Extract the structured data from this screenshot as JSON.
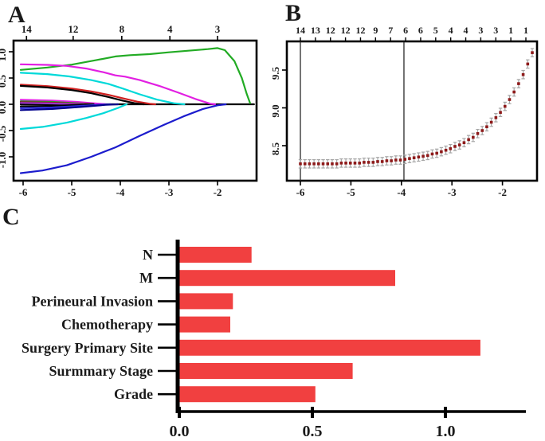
{
  "figure": {
    "panel_labels": {
      "a": "A",
      "b": "B",
      "c": "C"
    }
  },
  "chart_data": [
    {
      "id": "A",
      "type": "line",
      "title": "",
      "xlabel": "",
      "ylabel": "",
      "xlim": [
        -6.2,
        -1.2
      ],
      "ylim": [
        -1.45,
        1.3
      ],
      "grid": false,
      "top_axis": {
        "labels": [
          "14",
          "12",
          "8",
          "4",
          "3"
        ],
        "values": [
          -5.93,
          -4.97,
          -3.97,
          -2.98,
          -2.0
        ]
      },
      "x_ticks": {
        "labels": [
          "-6",
          "-5",
          "-4",
          "-3",
          "-2"
        ],
        "values": [
          -6,
          -5,
          -4,
          -3,
          -2
        ]
      },
      "y_ticks": {
        "labels": [
          "1.0",
          "0.5",
          "0.0",
          "-0.5",
          "-1.0"
        ],
        "values": [
          1.0,
          0.5,
          0.0,
          -0.5,
          -1.0
        ]
      },
      "series": [
        {
          "name": "zero-line",
          "color": "#000000",
          "points": [
            [
              -6.05,
              0
            ],
            [
              -1.25,
              0
            ]
          ]
        },
        {
          "name": "coef-green-main",
          "color": "#22AB24",
          "points": [
            [
              -6.05,
              0.655
            ],
            [
              -5.5,
              0.7
            ],
            [
              -5.0,
              0.755
            ],
            [
              -4.5,
              0.84
            ],
            [
              -4.1,
              0.91
            ],
            [
              -3.8,
              0.935
            ],
            [
              -3.4,
              0.955
            ],
            [
              -3.0,
              0.99
            ],
            [
              -2.6,
              1.02
            ],
            [
              -2.2,
              1.05
            ],
            [
              -2.0,
              1.07
            ],
            [
              -1.85,
              1.03
            ],
            [
              -1.65,
              0.82
            ],
            [
              -1.5,
              0.5
            ],
            [
              -1.4,
              0.2
            ],
            [
              -1.33,
              0.02
            ]
          ]
        },
        {
          "name": "coef-magenta-main",
          "color": "#E21FE2",
          "points": [
            [
              -6.05,
              0.76
            ],
            [
              -5.5,
              0.75
            ],
            [
              -5.1,
              0.73
            ],
            [
              -4.7,
              0.68
            ],
            [
              -4.35,
              0.61
            ],
            [
              -4.1,
              0.55
            ],
            [
              -3.9,
              0.525
            ],
            [
              -3.6,
              0.46
            ],
            [
              -3.2,
              0.35
            ],
            [
              -2.8,
              0.22
            ],
            [
              -2.45,
              0.1
            ],
            [
              -2.15,
              0.01
            ],
            [
              -2.05,
              0
            ]
          ]
        },
        {
          "name": "coef-cyan-main",
          "color": "#00D9D9",
          "points": [
            [
              -6.05,
              0.6
            ],
            [
              -5.5,
              0.575
            ],
            [
              -5.05,
              0.53
            ],
            [
              -4.6,
              0.46
            ],
            [
              -4.25,
              0.39
            ],
            [
              -3.95,
              0.3
            ],
            [
              -3.6,
              0.19
            ],
            [
              -3.25,
              0.09
            ],
            [
              -2.9,
              0.02
            ],
            [
              -2.68,
              0
            ]
          ]
        },
        {
          "name": "coef-red-main",
          "color": "#D02020",
          "points": [
            [
              -6.05,
              0.375
            ],
            [
              -5.5,
              0.345
            ],
            [
              -5.0,
              0.3
            ],
            [
              -4.6,
              0.245
            ],
            [
              -4.25,
              0.18
            ],
            [
              -3.95,
              0.115
            ],
            [
              -3.65,
              0.05
            ],
            [
              -3.4,
              0.01
            ],
            [
              -3.28,
              0
            ]
          ]
        },
        {
          "name": "coef-black-main",
          "color": "#000000",
          "points": [
            [
              -6.05,
              0.35
            ],
            [
              -5.5,
              0.32
            ],
            [
              -5.0,
              0.27
            ],
            [
              -4.6,
              0.21
            ],
            [
              -4.25,
              0.14
            ],
            [
              -3.95,
              0.07
            ],
            [
              -3.7,
              0.02
            ],
            [
              -3.52,
              0
            ]
          ]
        },
        {
          "name": "coef-magenta-small",
          "color": "#E21FE2",
          "points": [
            [
              -6.05,
              0.085
            ],
            [
              -5.4,
              0.07
            ],
            [
              -4.9,
              0.045
            ],
            [
              -4.5,
              0.015
            ],
            [
              -4.3,
              0
            ]
          ]
        },
        {
          "name": "coef-green-small",
          "color": "#22AB24",
          "points": [
            [
              -6.05,
              0.055
            ],
            [
              -5.4,
              0.045
            ],
            [
              -4.9,
              0.02
            ],
            [
              -4.55,
              0
            ]
          ]
        },
        {
          "name": "coef-darkred-small",
          "color": "#8B2020",
          "points": [
            [
              -6.05,
              0.04
            ],
            [
              -5.4,
              0.03
            ],
            [
              -4.9,
              0.012
            ],
            [
              -4.6,
              0
            ]
          ]
        },
        {
          "name": "coef-purple-small",
          "color": "#9A32CD",
          "points": [
            [
              -6.05,
              0.025
            ],
            [
              -5.4,
              0.015
            ],
            [
              -5.0,
              0.005
            ],
            [
              -4.75,
              0
            ]
          ]
        },
        {
          "name": "coef-black-small",
          "color": "#000000",
          "points": [
            [
              -6.05,
              -0.04
            ],
            [
              -5.4,
              -0.03
            ],
            [
              -4.9,
              -0.012
            ],
            [
              -4.55,
              0
            ]
          ]
        },
        {
          "name": "coef-blue-small",
          "color": "#2E2ED6",
          "points": [
            [
              -6.05,
              -0.075
            ],
            [
              -5.4,
              -0.06
            ],
            [
              -4.8,
              -0.03
            ],
            [
              -4.35,
              -0.005
            ],
            [
              -4.2,
              0
            ]
          ]
        },
        {
          "name": "coef-navy-small",
          "color": "#00008B",
          "points": [
            [
              -6.05,
              -0.11
            ],
            [
              -5.4,
              -0.09
            ],
            [
              -4.8,
              -0.05
            ],
            [
              -4.3,
              -0.01
            ],
            [
              -4.05,
              0
            ]
          ]
        },
        {
          "name": "coef-cyan-low",
          "color": "#00D9D9",
          "points": [
            [
              -6.05,
              -0.47
            ],
            [
              -5.6,
              -0.43
            ],
            [
              -5.1,
              -0.35
            ],
            [
              -4.7,
              -0.26
            ],
            [
              -4.35,
              -0.17
            ],
            [
              -4.05,
              -0.07
            ],
            [
              -3.87,
              0
            ]
          ]
        },
        {
          "name": "coef-blue-low",
          "color": "#1C1CCD",
          "points": [
            [
              -6.05,
              -1.31
            ],
            [
              -5.6,
              -1.26
            ],
            [
              -5.1,
              -1.16
            ],
            [
              -4.6,
              -1.0
            ],
            [
              -4.1,
              -0.82
            ],
            [
              -3.6,
              -0.6
            ],
            [
              -3.1,
              -0.39
            ],
            [
              -2.7,
              -0.23
            ],
            [
              -2.3,
              -0.09
            ],
            [
              -2.0,
              -0.02
            ],
            [
              -1.83,
              0
            ]
          ]
        }
      ]
    },
    {
      "id": "B",
      "type": "scatter",
      "title": "",
      "xlabel": "",
      "ylabel": "",
      "xlim": [
        -6.27,
        -1.33
      ],
      "ylim": [
        8.04,
        9.88
      ],
      "grid": false,
      "top_axis": {
        "labels": [
          "14",
          "13",
          "12",
          "12",
          "12",
          "9",
          "7",
          "6",
          "6",
          "5",
          "4",
          "4",
          "3",
          "3",
          "1",
          "1"
        ]
      },
      "x_ticks": {
        "labels": [
          "-6",
          "-5",
          "-4",
          "-3",
          "-2"
        ],
        "values": [
          -6,
          -5,
          -4,
          -3,
          -2
        ]
      },
      "y_ticks": {
        "labels": [
          "9.5",
          "9.0",
          "8.5"
        ],
        "values": [
          9.5,
          9.0,
          8.5
        ]
      },
      "vlines": [
        -6.0,
        -3.95
      ],
      "point_color": "#8E1A1A",
      "errorbar_color": "#A6A6A6",
      "error": 0.055,
      "x": [
        -6.0,
        -5.91,
        -5.82,
        -5.73,
        -5.64,
        -5.55,
        -5.46,
        -5.37,
        -5.28,
        -5.19,
        -5.1,
        -5.01,
        -4.92,
        -4.83,
        -4.74,
        -4.65,
        -4.56,
        -4.47,
        -4.38,
        -4.29,
        -4.2,
        -4.11,
        -4.02,
        -3.93,
        -3.84,
        -3.75,
        -3.66,
        -3.57,
        -3.48,
        -3.39,
        -3.3,
        -3.21,
        -3.12,
        -3.03,
        -2.94,
        -2.85,
        -2.76,
        -2.67,
        -2.58,
        -2.49,
        -2.4,
        -2.31,
        -2.22,
        -2.13,
        -2.04,
        -1.95,
        -1.86,
        -1.77,
        -1.68,
        -1.59,
        -1.5,
        -1.41
      ],
      "y": [
        8.26,
        8.26,
        8.26,
        8.26,
        8.26,
        8.26,
        8.26,
        8.26,
        8.26,
        8.27,
        8.27,
        8.27,
        8.27,
        8.27,
        8.28,
        8.28,
        8.28,
        8.29,
        8.29,
        8.3,
        8.3,
        8.31,
        8.31,
        8.32,
        8.33,
        8.34,
        8.35,
        8.36,
        8.37,
        8.39,
        8.4,
        8.42,
        8.44,
        8.46,
        8.49,
        8.51,
        8.54,
        8.58,
        8.61,
        8.66,
        8.7,
        8.75,
        8.81,
        8.87,
        8.94,
        9.02,
        9.11,
        9.21,
        9.32,
        9.44,
        9.58,
        9.73
      ]
    },
    {
      "id": "C",
      "type": "bar",
      "orientation": "horizontal",
      "title": "",
      "xlabel": "",
      "ylabel": "",
      "categories": [
        "N",
        "M",
        "Perineural Invasion",
        "Chemotherapy",
        "Surgery Primary Site",
        "Surmmary Stage",
        "Grade"
      ],
      "values": [
        0.27,
        0.81,
        0.2,
        0.19,
        1.13,
        0.65,
        0.51
      ],
      "xlim": [
        0,
        1.3
      ],
      "x_ticks": {
        "labels": [
          "0.0",
          "0.5",
          "1.0"
        ],
        "values": [
          0.0,
          0.5,
          1.0
        ]
      },
      "bar_color": "#F14040",
      "axis_color": "#000000"
    }
  ]
}
